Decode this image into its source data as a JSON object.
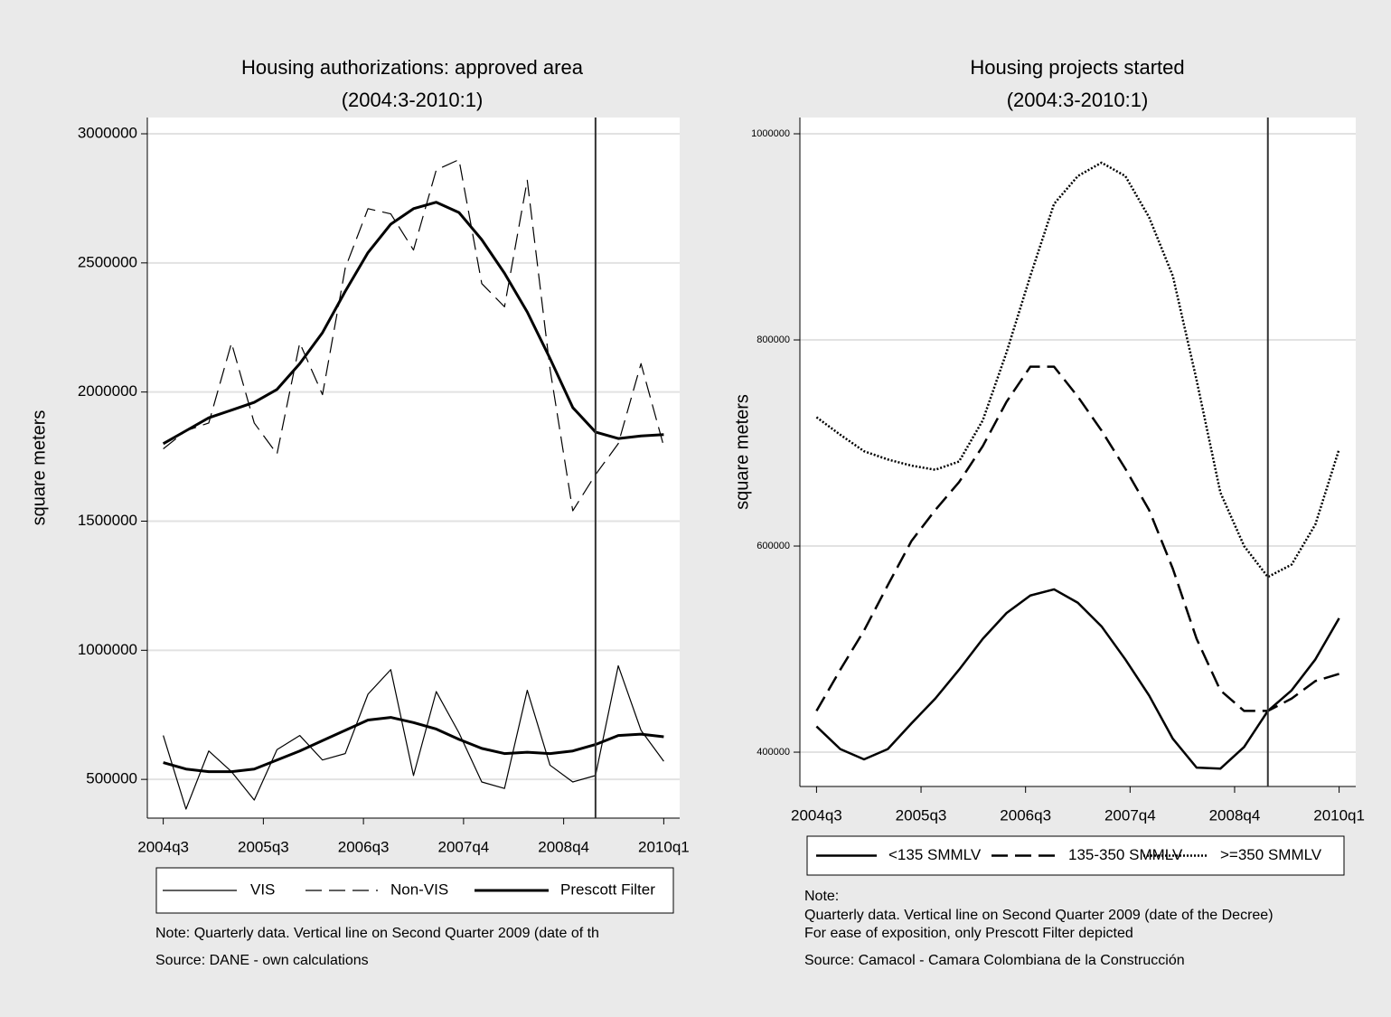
{
  "chart_data": [
    {
      "type": "line",
      "title": "Housing authorizations: approved area",
      "subtitle": "(2004:3-2010:1)",
      "ylabel": "square meters",
      "x": [
        178,
        179,
        180,
        181,
        182,
        183,
        184,
        185,
        186,
        187,
        188,
        189,
        190,
        191,
        192,
        193,
        194,
        195,
        196,
        197,
        198,
        199,
        200
      ],
      "xlim": [
        177.3,
        200.7
      ],
      "xticks": [
        {
          "value": 178,
          "label": "2004q3"
        },
        {
          "value": 182.4,
          "label": "2005q3"
        },
        {
          "value": 186.8,
          "label": "2006q3"
        },
        {
          "value": 191.2,
          "label": "2007q4"
        },
        {
          "value": 195.6,
          "label": "2008q4"
        },
        {
          "value": 200,
          "label": "2010q1"
        }
      ],
      "ylim": [
        350000,
        3063000
      ],
      "yticks": [
        500000,
        1000000,
        1500000,
        2000000,
        2500000,
        3000000
      ],
      "grid": true,
      "legend": "bottom",
      "vline": 197,
      "series": [
        {
          "name": "VIS",
          "color": "#000000",
          "dash": "solid",
          "width": 1.2,
          "values": [
            670000,
            385000,
            610000,
            530000,
            420000,
            615000,
            670000,
            575000,
            600000,
            830000,
            925000,
            515000,
            840000,
            680000,
            490000,
            465000,
            845000,
            555000,
            490000,
            515000,
            940000,
            690000,
            570000
          ]
        },
        {
          "name": "Non-VIS",
          "color": "#000000",
          "dash": "dashed",
          "width": 1.2,
          "values": [
            1780000,
            1850000,
            1880000,
            2190000,
            1880000,
            1760000,
            2190000,
            1990000,
            2480000,
            2710000,
            2690000,
            2550000,
            2860000,
            2900000,
            2420000,
            2330000,
            2820000,
            2090000,
            1540000,
            1680000,
            1800000,
            2110000,
            1790000
          ]
        },
        {
          "name": "Prescott Filter",
          "color": "#000000",
          "dash": "solid",
          "width": 3,
          "values": [
            1800000,
            1850000,
            1900000,
            1930000,
            1960000,
            2010000,
            2110000,
            2230000,
            2390000,
            2540000,
            2650000,
            2710000,
            2735000,
            2695000,
            2590000,
            2460000,
            2310000,
            2130000,
            1940000,
            1845000,
            1820000,
            1830000,
            1835000
          ]
        },
        {
          "color": "#000000",
          "dash": "solid",
          "width": 3,
          "values": [
            565000,
            540000,
            530000,
            530000,
            540000,
            575000,
            610000,
            650000,
            690000,
            730000,
            740000,
            720000,
            695000,
            655000,
            620000,
            600000,
            605000,
            600000,
            610000,
            635000,
            670000,
            675000,
            665000
          ]
        }
      ],
      "notes": [
        "Note: Quarterly data. Vertical line on Second Quarter 2009 (date of th",
        "Source: DANE - own calculations"
      ]
    },
    {
      "type": "line",
      "title": "Housing projects started",
      "subtitle": "(2004:3-2010:1)",
      "ylabel": "square meters",
      "x": [
        178,
        179,
        180,
        181,
        182,
        183,
        184,
        185,
        186,
        187,
        188,
        189,
        190,
        191,
        192,
        193,
        194,
        195,
        196,
        197,
        198,
        199,
        200
      ],
      "xlim": [
        177.3,
        200.7
      ],
      "xticks": [
        {
          "value": 178,
          "label": "2004q3"
        },
        {
          "value": 182.4,
          "label": "2005q3"
        },
        {
          "value": 186.8,
          "label": "2006q3"
        },
        {
          "value": 191.2,
          "label": "2007q4"
        },
        {
          "value": 195.6,
          "label": "2008q4"
        },
        {
          "value": 200,
          "label": "2010q1"
        }
      ],
      "ylim": [
        366700,
        1015800
      ],
      "yticks": [
        400000,
        600000,
        800000,
        1000000
      ],
      "grid": true,
      "legend": "bottom",
      "vline": 197,
      "series": [
        {
          "name": "<135 SMMLV",
          "color": "#000000",
          "dash": "solid",
          "width": 2.5,
          "values": [
            425000,
            403000,
            393000,
            403000,
            428000,
            452000,
            480000,
            510000,
            535000,
            552000,
            558000,
            545000,
            522000,
            490000,
            455000,
            413000,
            385000,
            384000,
            405000,
            440000,
            460000,
            490000,
            530000
          ]
        },
        {
          "name": "135-350 SMMLV",
          "color": "#000000",
          "dash": "dashed",
          "width": 2.5,
          "values": [
            440000,
            480000,
            518000,
            562000,
            605000,
            635000,
            662000,
            697000,
            740000,
            774000,
            774000,
            745000,
            712000,
            675000,
            635000,
            578000,
            510000,
            460000,
            440000,
            440000,
            452000,
            469000,
            476000
          ]
        },
        {
          "name": ">=350 SMMLV",
          "color": "#000000",
          "dash": "dotted",
          "width": 2.5,
          "values": [
            725000,
            708000,
            692000,
            684000,
            678000,
            674000,
            682000,
            722000,
            788000,
            862000,
            932000,
            959000,
            972000,
            959000,
            919000,
            862000,
            761000,
            652000,
            600000,
            570000,
            582000,
            621000,
            694000
          ]
        }
      ],
      "notes": [
        "Note:",
        "Quarterly data. Vertical line on Second Quarter 2009 (date of the Decree)",
        "For ease of exposition, only Prescott Filter depicted",
        "Source: Camacol - Camara Colombiana de la Construcción"
      ]
    }
  ]
}
